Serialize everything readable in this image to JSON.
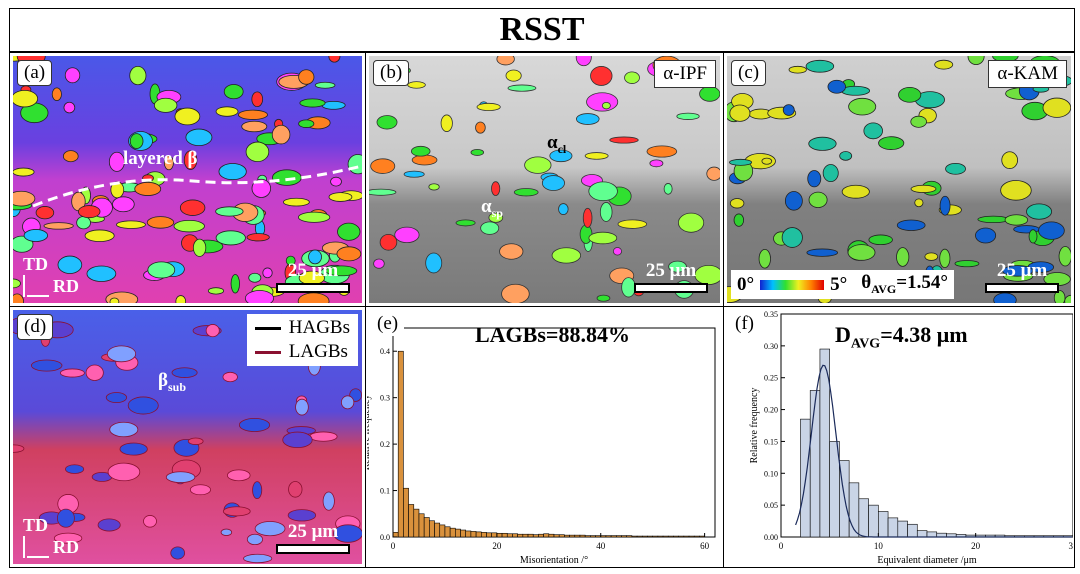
{
  "figure_title": "RSST",
  "panels": {
    "a": {
      "label": "(a)",
      "annotation": "layered β",
      "scale": "25 μm",
      "axis_td": "TD",
      "axis_rd": "RD"
    },
    "b": {
      "label": "(b)",
      "tag": "α-IPF",
      "ann_cl_main": "α",
      "ann_cl_sub": "cl",
      "ann_sp_main": "α",
      "ann_sp_sub": "sp",
      "scale": "25 μm"
    },
    "c": {
      "label": "(c)",
      "tag": "α-KAM",
      "scale": "25 μm",
      "kam_min": "0°",
      "kam_max": "5°",
      "theta_main": "θ",
      "theta_sub": "AVG",
      "theta_value": "=1.54°"
    },
    "d": {
      "label": "(d)",
      "legend_hagbs": "HAGBs",
      "legend_lagbs": "LAGBs",
      "ann_main": "β",
      "ann_sub": "sub",
      "scale": "25 μm",
      "axis_td": "TD",
      "axis_rd": "RD"
    },
    "e": {
      "label": "(e)",
      "headline": "LAGBs=88.84%"
    },
    "f": {
      "label": "(f)",
      "headline_main": "D",
      "headline_sub": "AVG",
      "headline_value": "=4.38 μm"
    }
  },
  "colors": {
    "hagb": "#000000",
    "lagb": "#8a1030",
    "bar_e": "#d9913c",
    "bar_f": "#c9d4e6"
  },
  "chart_data": [
    {
      "type": "bar",
      "id": "e",
      "title": "LAGBs=88.84%",
      "xlabel": "Misorientation /°",
      "ylabel": "Relative frequency",
      "xlim": [
        0,
        62
      ],
      "ylim": [
        0,
        0.45
      ],
      "xticks": [
        0,
        20,
        40,
        60
      ],
      "yticks": [
        0.0,
        0.1,
        0.2,
        0.3,
        0.4
      ],
      "bin_width": 1,
      "x": [
        0.5,
        1.5,
        2.5,
        3.5,
        4.5,
        5.5,
        6.5,
        7.5,
        8.5,
        9.5,
        10.5,
        11.5,
        12.5,
        13.5,
        14.5,
        15.5,
        16.5,
        17.5,
        18.5,
        19.5,
        20.5,
        21.5,
        22.5,
        23.5,
        24.5,
        25.5,
        26.5,
        27.5,
        28.5,
        29.5,
        30.5,
        31.5,
        32.5,
        33.5,
        34.5,
        35.5,
        36.5,
        37.5,
        38.5,
        39.5,
        40.5,
        41.5,
        42.5,
        43.5,
        44.5,
        45.5,
        46.5,
        47.5,
        48.5,
        49.5,
        50.5,
        51.5,
        52.5,
        53.5,
        54.5,
        55.5,
        56.5,
        57.5,
        58.5,
        59.5
      ],
      "values": [
        0.01,
        0.4,
        0.105,
        0.07,
        0.06,
        0.05,
        0.042,
        0.035,
        0.03,
        0.026,
        0.022,
        0.019,
        0.017,
        0.015,
        0.013,
        0.012,
        0.011,
        0.01,
        0.009,
        0.009,
        0.008,
        0.008,
        0.007,
        0.007,
        0.006,
        0.006,
        0.006,
        0.005,
        0.006,
        0.007,
        0.006,
        0.005,
        0.005,
        0.004,
        0.004,
        0.004,
        0.004,
        0.003,
        0.003,
        0.003,
        0.003,
        0.003,
        0.003,
        0.003,
        0.003,
        0.003,
        0.002,
        0.002,
        0.002,
        0.002,
        0.002,
        0.002,
        0.002,
        0.002,
        0.002,
        0.002,
        0.002,
        0.002,
        0.002,
        0.002
      ]
    },
    {
      "type": "bar",
      "id": "f",
      "title": "DAVG=4.38 μm",
      "xlabel": "Equivalent diameter /μm",
      "ylabel": "Relative frequency",
      "xlim": [
        0,
        30
      ],
      "ylim": [
        0,
        0.35
      ],
      "xticks": [
        0,
        10,
        20,
        30
      ],
      "yticks": [
        0.0,
        0.05,
        0.1,
        0.15,
        0.2,
        0.25,
        0.3,
        0.35
      ],
      "bin_width": 1,
      "x": [
        2.5,
        3.5,
        4.5,
        5.5,
        6.5,
        7.5,
        8.5,
        9.5,
        10.5,
        11.5,
        12.5,
        13.5,
        14.5,
        15.5,
        16.5,
        17.5,
        18.5,
        19.5,
        20.5,
        21.5,
        22.5,
        23.5,
        24.5,
        25.5,
        26.5,
        27.5,
        28.5,
        29.5
      ],
      "values": [
        0.185,
        0.23,
        0.295,
        0.15,
        0.12,
        0.085,
        0.06,
        0.05,
        0.04,
        0.03,
        0.025,
        0.02,
        0.01,
        0.008,
        0.006,
        0.005,
        0.004,
        0.003,
        0.003,
        0.003,
        0.003,
        0.002,
        0.002,
        0.002,
        0.002,
        0.002,
        0.002,
        0.002
      ],
      "fit": {
        "mean": 4.38,
        "sigma": 1.25,
        "peak": 0.27
      }
    }
  ]
}
